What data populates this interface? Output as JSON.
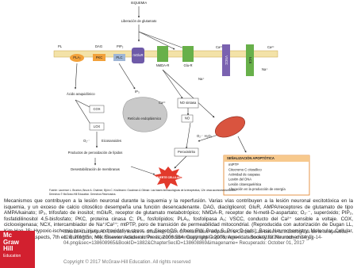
{
  "diagram": {
    "ischemia": "ISQUEMIA",
    "glutamate_release": "Liberación de glutamato",
    "pl": "PL",
    "pla2": "PLA₂",
    "dag": "DAG",
    "pkc": "PKC",
    "pip2": "PIP₂",
    "plc": "PLC",
    "mglur": "mGluR",
    "nmdar": "NMDA-R",
    "glur": "Glu-R",
    "ca_left": "Ca²⁺",
    "ca_right": "Ca²⁺",
    "vscc": "VSCC",
    "nce": "NCE",
    "na_right": "Na⁺",
    "na_mid": "Na⁺",
    "arachidonic": "Ácido araquidónico",
    "cox": "COX",
    "lox": "LOX",
    "superoxide": "O₂·⁻",
    "eicosanoids": "Eicosanoides",
    "peroxidation": "Productos de peroxidación de lípidos",
    "destabilization": "Desestabilización de membranas",
    "ip3": "IP₃",
    "er": "Retículo endoplásmico",
    "ca_er": "Ca²⁺",
    "nos": "NO sintasa",
    "no": "NO",
    "ros": "O₂·⁻ H₂O₂",
    "peroxynitrite": "Peroxinitrito",
    "death": "MUERTE CELULAR",
    "apoptosis_title": "SEÑALIZACIÓN APOPTÓTICA",
    "apoptosis_items": [
      "mtPTP",
      "Citocromo C citosólico",
      "Actividad de caspasa",
      "Lesión del DNA",
      "Lesión citoesquelética",
      "Alteración en la producción de energía"
    ],
    "fig_source": "Fuente: Laurence L. Brunton, Bruce A. Chabner, Björn C. Knollmann: Goodman & Gilman: Las bases farmacológicas de la terapéutica, 12e: www.accessmedicina.com",
    "fig_copyright": "Derechos © McGraw-Hill Education. Derechos Reservados."
  },
  "caption": "Mecanismos que contribuyen a la lesión neuronal durante la isquemia y la reperfusión. Varias vías contribuyen a la lesión neuronal excitotóxica en la isquemia, y un exceso de calcio citosólico desempeña una función desencadenante. DAG, diacilglicerol; GluR, AMPA/receptores de glutamato de tipo AMPA/kainato; IP₃, trifosfato de inositol; mGluR, receptor de glutamato metabotrópico; NMDA-R, receptor de N-metil-D-aspartato; O₂·⁻, superóxido; PIP₂, fosfatidilinositol 4,5-bisfosfato; PKC, proteína cinasa C; PL, fosfolípidos; PLA₂, fosfolipasa A₂; VSCC, conducto del Ca²⁺ sensible a voltaje. COX, ciclooxigenasa; NCX, intercambiador de Na⁺/Ca²⁺; mtPTP, poro de transición de permeabilidad mitocondrial. (Reproducida con autorización de Dugan LL, Kim-Han JS: Hypoxic-ischemic brain injury and oxidative stress. en Siegel GS, Albers RW, Brady S, Price D (eds): Basic Neurochemistry: Molecular, Cellular, and Medical Aspects, 7th ed. Burlington, MA: Elsevier Academic Press; 2006:564. Copyright © 2006, American Society for Neurochemistry.)",
  "footer": {
    "source": "Source: Laurence L. Brunton, Bruce A. Chabner, Björn C. Knollmann: Goodman & Gilman: Las bases farmacológicas de la terapéutica, 12e; 2016 En: http://accessmedicina.mhmedical.com/downloadimage.aspx?image=/data/books/1882/brunton_ch14_fig-14-04.png&sec=138608965&BookID=1882&ChapterSecID=138608869&imagename= Recuperado: October 01, 2017",
    "copyright": "Copyright © 2017 McGraw-Hill Education. All rights reserved",
    "logo": [
      "Mc",
      "Graw",
      "Hill",
      "Education"
    ]
  }
}
